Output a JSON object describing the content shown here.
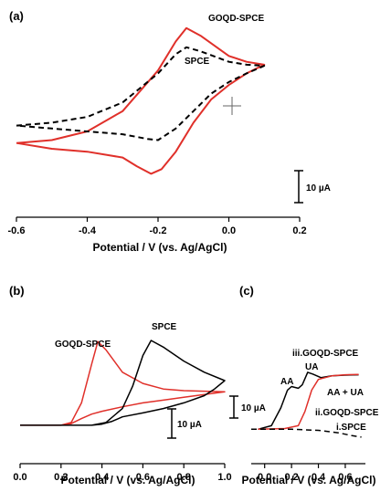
{
  "chart_data": [
    {
      "panel_label": "(a)",
      "type": "line",
      "xlabel": "Potential / V (vs. Ag/AgCl)",
      "xlim": [
        -0.6,
        0.2
      ],
      "xticks": [
        "-0.6",
        "-0.4",
        "-0.2",
        "0.0",
        "0.2"
      ],
      "scale_bar": "10 µA",
      "series": [
        {
          "name": "GOQD-SPCE",
          "color": "#e0302a",
          "style": "solid",
          "forward": [
            [
              -0.6,
              -8.5
            ],
            [
              -0.5,
              -8.0
            ],
            [
              -0.4,
              -6.5
            ],
            [
              -0.3,
              -3.0
            ],
            [
              -0.2,
              4.0
            ],
            [
              -0.15,
              9.0
            ],
            [
              -0.12,
              11.3
            ],
            [
              -0.08,
              10.0
            ],
            [
              0.0,
              6.5
            ],
            [
              0.05,
              5.5
            ],
            [
              0.1,
              5.0
            ]
          ],
          "reverse": [
            [
              0.1,
              5.0
            ],
            [
              0.05,
              3.5
            ],
            [
              0.0,
              1.5
            ],
            [
              -0.05,
              -1.0
            ],
            [
              -0.1,
              -5.0
            ],
            [
              -0.15,
              -10.0
            ],
            [
              -0.19,
              -13.0
            ],
            [
              -0.22,
              -13.8
            ],
            [
              -0.26,
              -12.5
            ],
            [
              -0.3,
              -11.0
            ],
            [
              -0.4,
              -10.0
            ],
            [
              -0.5,
              -9.5
            ],
            [
              -0.6,
              -8.5
            ]
          ]
        },
        {
          "name": "SPCE",
          "color": "#000000",
          "style": "dashed",
          "forward": [
            [
              -0.6,
              -5.5
            ],
            [
              -0.5,
              -5.0
            ],
            [
              -0.4,
              -4.0
            ],
            [
              -0.3,
              -1.5
            ],
            [
              -0.2,
              3.5
            ],
            [
              -0.15,
              6.8
            ],
            [
              -0.12,
              8.0
            ],
            [
              -0.08,
              7.3
            ],
            [
              0.0,
              5.5
            ],
            [
              0.05,
              5.0
            ],
            [
              0.1,
              4.8
            ]
          ],
          "reverse": [
            [
              0.1,
              4.8
            ],
            [
              0.05,
              3.5
            ],
            [
              0.0,
              2.0
            ],
            [
              -0.05,
              0.0
            ],
            [
              -0.1,
              -3.0
            ],
            [
              -0.15,
              -6.0
            ],
            [
              -0.2,
              -8.0
            ],
            [
              -0.23,
              -7.8
            ],
            [
              -0.3,
              -7.0
            ],
            [
              -0.4,
              -6.5
            ],
            [
              -0.5,
              -6.0
            ],
            [
              -0.6,
              -5.5
            ]
          ]
        }
      ]
    },
    {
      "panel_label": "(b)",
      "type": "line",
      "xlabel": "Potential / V (vs. Ag/AgCl)",
      "xlim": [
        0.0,
        1.0
      ],
      "xticks": [
        "0.0",
        "0.2",
        "0.4",
        "0.6",
        "0.8",
        "1.0"
      ],
      "scale_bar": "10 µA",
      "series": [
        {
          "name": "GOQD-SPCE",
          "color": "#e0302a",
          "style": "solid",
          "forward": [
            [
              0.0,
              0
            ],
            [
              0.2,
              0
            ],
            [
              0.25,
              0.5
            ],
            [
              0.3,
              4
            ],
            [
              0.35,
              11
            ],
            [
              0.38,
              15
            ],
            [
              0.42,
              13.5
            ],
            [
              0.5,
              9.5
            ],
            [
              0.6,
              7.5
            ],
            [
              0.7,
              6.5
            ],
            [
              0.8,
              6.2
            ],
            [
              0.9,
              6.1
            ],
            [
              1.0,
              6.0
            ]
          ],
          "reverse": [
            [
              1.0,
              6.0
            ],
            [
              0.9,
              5.5
            ],
            [
              0.8,
              5.0
            ],
            [
              0.7,
              4.5
            ],
            [
              0.6,
              4.0
            ],
            [
              0.5,
              3.3
            ],
            [
              0.4,
              2.5
            ],
            [
              0.35,
              2.0
            ],
            [
              0.3,
              1.2
            ],
            [
              0.25,
              0.3
            ],
            [
              0.2,
              0
            ]
          ]
        },
        {
          "name": "SPCE",
          "color": "#000000",
          "style": "solid",
          "forward": [
            [
              0.0,
              0
            ],
            [
              0.35,
              0
            ],
            [
              0.42,
              0.5
            ],
            [
              0.5,
              3
            ],
            [
              0.55,
              7
            ],
            [
              0.6,
              12.5
            ],
            [
              0.64,
              15.2
            ],
            [
              0.7,
              14
            ],
            [
              0.8,
              11.5
            ],
            [
              0.9,
              9.5
            ],
            [
              1.0,
              8.0
            ]
          ],
          "reverse": [
            [
              1.0,
              8.0
            ],
            [
              0.95,
              6.5
            ],
            [
              0.9,
              5.3
            ],
            [
              0.8,
              4.0
            ],
            [
              0.7,
              3.0
            ],
            [
              0.6,
              2.2
            ],
            [
              0.5,
              1.5
            ],
            [
              0.45,
              0.7
            ],
            [
              0.4,
              0.2
            ],
            [
              0.35,
              0
            ]
          ]
        }
      ]
    },
    {
      "panel_label": "(c)",
      "type": "line",
      "xticks": [
        "0.0",
        "0.2",
        "0.4",
        "0.6"
      ],
      "xlim": [
        -0.1,
        0.75
      ],
      "scale_bar": "10 µA",
      "annotations": [
        "iii.GOQD-SPCE",
        "UA",
        "AA",
        "AA + UA",
        "ii.GOQD-SPCE",
        "i.SPCE"
      ],
      "series": [
        {
          "name": "iii.GOQD-SPCE",
          "color": "#000000",
          "style": "solid",
          "points": [
            [
              -0.05,
              0
            ],
            [
              0.05,
              1
            ],
            [
              0.12,
              6
            ],
            [
              0.17,
              11
            ],
            [
              0.2,
              12
            ],
            [
              0.25,
              11.5
            ],
            [
              0.28,
              12.5
            ],
            [
              0.32,
              16
            ],
            [
              0.36,
              15.5
            ],
            [
              0.42,
              14.5
            ],
            [
              0.5,
              15
            ],
            [
              0.6,
              15.2
            ],
            [
              0.7,
              15.3
            ]
          ]
        },
        {
          "name": "ii.GOQD-SPCE",
          "color": "#e0302a",
          "style": "solid",
          "points": [
            [
              -0.05,
              0
            ],
            [
              0.15,
              0.2
            ],
            [
              0.25,
              1
            ],
            [
              0.3,
              5
            ],
            [
              0.35,
              11
            ],
            [
              0.4,
              14
            ],
            [
              0.5,
              15
            ],
            [
              0.6,
              15.3
            ],
            [
              0.7,
              15.4
            ]
          ]
        },
        {
          "name": "i.SPCE",
          "color": "#000000",
          "style": "dashed",
          "points": [
            [
              -0.1,
              0
            ],
            [
              0.2,
              0
            ],
            [
              0.4,
              -0.3
            ],
            [
              0.55,
              -1.0
            ],
            [
              0.65,
              -1.8
            ],
            [
              0.72,
              -2.2
            ]
          ]
        }
      ]
    }
  ]
}
